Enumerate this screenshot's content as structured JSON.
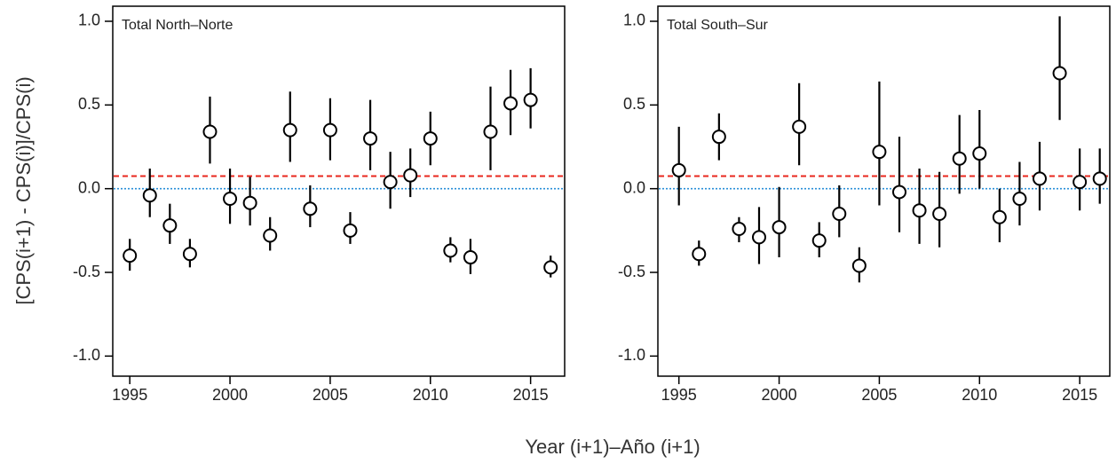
{
  "ylabel": "[CPS(i+1) - CPS(i)]/CPS(i)",
  "xlabel": "Year (i+1)–Año (i+1)",
  "chart_data": [
    {
      "type": "errorbar",
      "title": "Total North–Norte",
      "x": [
        1995,
        1996,
        1997,
        1998,
        1999,
        2000,
        2001,
        2002,
        2003,
        2004,
        2005,
        2006,
        2007,
        2008,
        2009,
        2010,
        2011,
        2012,
        2013,
        2014,
        2015,
        2016
      ],
      "values": [
        -0.4,
        -0.04,
        -0.22,
        -0.39,
        0.34,
        -0.06,
        -0.085,
        -0.28,
        0.35,
        -0.12,
        0.35,
        -0.25,
        0.3,
        0.04,
        0.08,
        0.3,
        -0.37,
        -0.41,
        0.34,
        0.51,
        0.53,
        -0.47
      ],
      "lower": [
        -0.49,
        -0.17,
        -0.33,
        -0.47,
        0.15,
        -0.21,
        -0.22,
        -0.37,
        0.16,
        -0.23,
        0.17,
        -0.33,
        0.11,
        -0.12,
        -0.05,
        0.14,
        -0.44,
        -0.51,
        0.11,
        0.32,
        0.36,
        -0.53
      ],
      "upper": [
        -0.3,
        0.12,
        -0.09,
        -0.3,
        0.55,
        0.12,
        0.07,
        -0.17,
        0.58,
        0.02,
        0.54,
        -0.14,
        0.53,
        0.22,
        0.24,
        0.46,
        -0.29,
        -0.3,
        0.61,
        0.71,
        0.72,
        -0.4
      ],
      "color": "#000000",
      "hlines": [
        {
          "value": 0.075,
          "color": "#e8271e",
          "style": "dashed"
        },
        {
          "value": 0,
          "color": "#2a8fd8",
          "style": "dotted"
        }
      ],
      "xlim": [
        1994.15,
        2016.7
      ],
      "ylim": [
        -1.12,
        1.09
      ],
      "xticks": [
        1995,
        2000,
        2005,
        2010,
        2015
      ],
      "yticks": [
        {
          "value": -1,
          "label": "-1.0"
        },
        -0.5,
        {
          "value": 0,
          "label": "0.0"
        },
        0.5,
        {
          "value": 1,
          "label": "1.0"
        }
      ]
    },
    {
      "type": "errorbar",
      "title": "Total South–Sur",
      "x": [
        1995,
        1996,
        1997,
        1998,
        1999,
        2000,
        2001,
        2002,
        2003,
        2004,
        2005,
        2006,
        2007,
        2008,
        2009,
        2010,
        2011,
        2012,
        2013,
        2014,
        2015,
        2016
      ],
      "values": [
        0.11,
        -0.39,
        0.31,
        -0.24,
        -0.29,
        -0.23,
        0.37,
        -0.31,
        -0.15,
        -0.46,
        0.22,
        -0.02,
        -0.13,
        -0.15,
        0.18,
        0.21,
        -0.17,
        -0.06,
        0.06,
        0.69,
        0.04,
        0.06
      ],
      "lower": [
        -0.1,
        -0.46,
        0.17,
        -0.32,
        -0.45,
        -0.41,
        0.14,
        -0.41,
        -0.29,
        -0.56,
        -0.1,
        -0.26,
        -0.33,
        -0.35,
        -0.03,
        0.0,
        -0.32,
        -0.22,
        -0.13,
        0.41,
        -0.13,
        -0.09
      ],
      "upper": [
        0.37,
        -0.31,
        0.45,
        -0.17,
        -0.11,
        0.01,
        0.63,
        -0.2,
        0.02,
        -0.35,
        0.64,
        0.31,
        0.12,
        0.1,
        0.44,
        0.47,
        0.0,
        0.16,
        0.28,
        1.03,
        0.24,
        0.24
      ],
      "color": "#000000",
      "hlines": [
        {
          "value": 0.075,
          "color": "#e8271e",
          "style": "dashed"
        },
        {
          "value": 0,
          "color": "#2a8fd8",
          "style": "dotted"
        }
      ],
      "xlim": [
        1993.95,
        2016.5
      ],
      "ylim": [
        -1.12,
        1.09
      ],
      "xticks": [
        1995,
        2000,
        2005,
        2010,
        2015
      ],
      "yticks": [
        {
          "value": -1,
          "label": "-1.0"
        },
        -0.5,
        {
          "value": 0,
          "label": "0.0"
        },
        0.5,
        {
          "value": 1,
          "label": "1.0"
        }
      ]
    }
  ]
}
